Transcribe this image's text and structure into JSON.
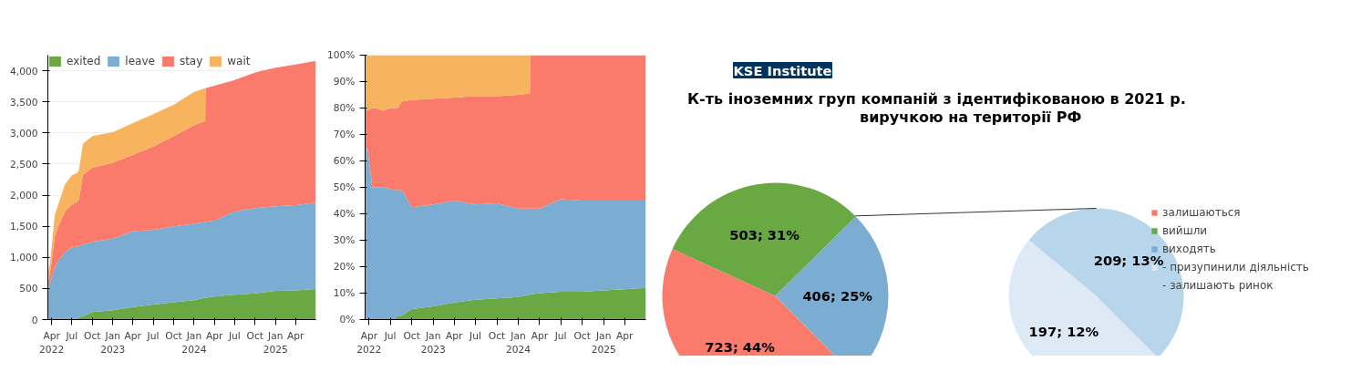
{
  "chart_data": [
    {
      "type": "area",
      "stacked": true,
      "legend": "top left",
      "grid": "y",
      "x": [
        "2022-03-15",
        "2022-03-25",
        "2022-04-15",
        "2022-05-01",
        "2022-06-01",
        "2022-07-01",
        "2022-07-20",
        "2022-08-01",
        "2022-08-20",
        "2022-10-01",
        "2023-01-01",
        "2023-04-01",
        "2023-07-01",
        "2023-10-01",
        "2024-01-01",
        "2024-02-20",
        "2024-02-21",
        "2024-04-01",
        "2024-07-01",
        "2024-10-01",
        "2025-01-01",
        "2025-04-01",
        "2025-07-01"
      ],
      "series": [
        {
          "name": "exited",
          "color": "#6aa843",
          "values": [
            0,
            0,
            0,
            0,
            0,
            0,
            0,
            40,
            50,
            120,
            150,
            200,
            240,
            280,
            310,
            350,
            350,
            370,
            400,
            420,
            460,
            470,
            490
          ]
        },
        {
          "name": "leave",
          "color": "#7badd2",
          "values": [
            470,
            600,
            830,
            950,
            1080,
            1160,
            1170,
            1150,
            1150,
            1130,
            1150,
            1220,
            1200,
            1220,
            1230,
            1220,
            1220,
            1220,
            1340,
            1370,
            1360,
            1370,
            1390
          ]
        },
        {
          "name": "stay",
          "color": "#fa7b6c",
          "values": [
            120,
            150,
            500,
            550,
            660,
            690,
            710,
            730,
            1130,
            1190,
            1220,
            1230,
            1340,
            1450,
            1580,
            1620,
            2150,
            2170,
            2110,
            2180,
            2230,
            2260,
            2280
          ]
        },
        {
          "name": "wait",
          "color": "#f8b35e",
          "values": [
            150,
            170,
            350,
            350,
            440,
            470,
            470,
            470,
            500,
            510,
            490,
            510,
            520,
            500,
            540,
            530,
            0,
            0,
            0,
            0,
            0,
            0,
            0
          ]
        }
      ],
      "xlim": [
        "2022-03-15",
        "2025-07-01"
      ],
      "xticks": [
        {
          "value": "2022-04-01",
          "label": "Apr\n2022"
        },
        {
          "value": "2022-07-01",
          "label": "Jul"
        },
        {
          "value": "2022-10-01",
          "label": "Oct"
        },
        {
          "value": "2023-01-01",
          "label": "Jan\n2023"
        },
        {
          "value": "2023-04-01",
          "label": "Apr"
        },
        {
          "value": "2023-07-01",
          "label": "Jul"
        },
        {
          "value": "2023-10-01",
          "label": "Oct"
        },
        {
          "value": "2024-01-01",
          "label": "Jan\n2024"
        },
        {
          "value": "2024-04-01",
          "label": "Apr"
        },
        {
          "value": "2024-07-01",
          "label": "Jul"
        },
        {
          "value": "2024-10-01",
          "label": "Oct"
        },
        {
          "value": "2025-01-01",
          "label": "Jan\n2025"
        },
        {
          "value": "2025-04-01",
          "label": "Apr"
        }
      ],
      "ylim": [
        0,
        4250
      ],
      "yticks": [
        0,
        500,
        {
          "value": 1000,
          "label": "1,000"
        },
        {
          "value": 1500,
          "label": "1,500"
        },
        {
          "value": 2000,
          "label": "2,000"
        },
        {
          "value": 2500,
          "label": "2,500"
        },
        {
          "value": 3000,
          "label": "3,000"
        },
        {
          "value": 3500,
          "label": "3,500"
        },
        {
          "value": 4000,
          "label": "4,000"
        }
      ]
    },
    {
      "type": "area",
      "stacked": true,
      "x": [
        "2022-03-15",
        "2022-03-25",
        "2022-04-15",
        "2022-05-01",
        "2022-06-01",
        "2022-07-01",
        "2022-07-20",
        "2022-08-01",
        "2022-08-20",
        "2022-10-01",
        "2023-01-01",
        "2023-04-01",
        "2023-07-01",
        "2023-10-01",
        "2024-01-01",
        "2024-02-20",
        "2024-02-21",
        "2024-04-01",
        "2024-07-01",
        "2024-10-01",
        "2025-01-01",
        "2025-04-01",
        "2025-07-01"
      ],
      "series": [
        {
          "color": "#6aa843",
          "values": [
            0,
            0,
            0,
            0,
            0,
            0,
            0,
            1.5,
            1.5,
            4,
            5,
            6.5,
            7.5,
            8,
            8.5,
            9.5,
            9.5,
            10,
            10.5,
            10.5,
            11,
            11.5,
            12
          ]
        },
        {
          "color": "#7badd2",
          "values": [
            63,
            65,
            50,
            50,
            50,
            49.5,
            49,
            47.5,
            47.5,
            38.5,
            38.5,
            38.5,
            36,
            36,
            33.5,
            32.5,
            32.5,
            32,
            35,
            34.5,
            34,
            33.5,
            33
          ]
        },
        {
          "color": "#fa7b6c",
          "values": [
            18,
            14,
            30,
            30,
            29,
            30.5,
            31,
            31,
            33.5,
            40.5,
            40,
            39,
            41,
            40.5,
            43,
            43.5,
            58,
            58,
            54.5,
            55,
            55,
            55,
            55
          ]
        },
        {
          "color": "#f8b35e",
          "values": [
            19,
            21,
            20,
            20,
            21,
            20,
            20,
            20,
            17.5,
            17,
            16.5,
            16,
            15.5,
            15.5,
            15,
            14.5,
            0,
            0,
            0,
            0,
            0,
            0,
            0
          ]
        }
      ],
      "xlim": [
        "2022-03-15",
        "2025-07-01"
      ],
      "xticks": [
        {
          "value": "2022-04-01",
          "label": "Apr\n2022"
        },
        {
          "value": "2022-07-01",
          "label": "Jul"
        },
        {
          "value": "2022-10-01",
          "label": "Oct"
        },
        {
          "value": "2023-01-01",
          "label": "Jan\n2023"
        },
        {
          "value": "2023-04-01",
          "label": "Apr"
        },
        {
          "value": "2023-07-01",
          "label": "Jul"
        },
        {
          "value": "2023-10-01",
          "label": "Oct"
        },
        {
          "value": "2024-01-01",
          "label": "Jan\n2024"
        },
        {
          "value": "2024-04-01",
          "label": "Apr"
        },
        {
          "value": "2024-07-01",
          "label": "Jul"
        },
        {
          "value": "2024-10-01",
          "label": "Oct"
        },
        {
          "value": "2025-01-01",
          "label": "Jan\n2025"
        },
        {
          "value": "2025-04-01",
          "label": "Apr"
        }
      ],
      "ylim": [
        0,
        100
      ],
      "yticks": [
        {
          "value": 0,
          "label": "0%"
        },
        {
          "value": 10,
          "label": "10%"
        },
        {
          "value": 20,
          "label": "20%"
        },
        {
          "value": 30,
          "label": "30%"
        },
        {
          "value": 40,
          "label": "40%"
        },
        {
          "value": 50,
          "label": "50%"
        },
        {
          "value": 60,
          "label": "60%"
        },
        {
          "value": 70,
          "label": "70%"
        },
        {
          "value": 80,
          "label": "80%"
        },
        {
          "value": 90,
          "label": "90%"
        },
        {
          "value": 100,
          "label": "100%"
        }
      ]
    },
    {
      "type": "pie",
      "title": "К-ть іноземних груп компаній з ідентифікованою в 2021 р.\nвиручкою на території РФ",
      "annotations": [
        "KSE Institute"
      ],
      "legend": "right",
      "categories": [
        "залишаються",
        "вийшли",
        "виходять"
      ],
      "values": [
        723,
        503,
        406
      ],
      "colors": [
        "#fa7b6c",
        "#6aa843",
        "#7badd2"
      ],
      "value_labels": [
        "723; 44%",
        "503; 31%",
        "406; 25%"
      ]
    },
    {
      "type": "pie",
      "legend": "right",
      "categories": [
        "- призупинили діяльність",
        "- залишають ринок"
      ],
      "values": [
        197,
        209
      ],
      "colors": [
        "#dde9f5",
        "#b8d6eb"
      ],
      "value_labels": [
        "197; 12%",
        "209; 13%"
      ]
    }
  ]
}
